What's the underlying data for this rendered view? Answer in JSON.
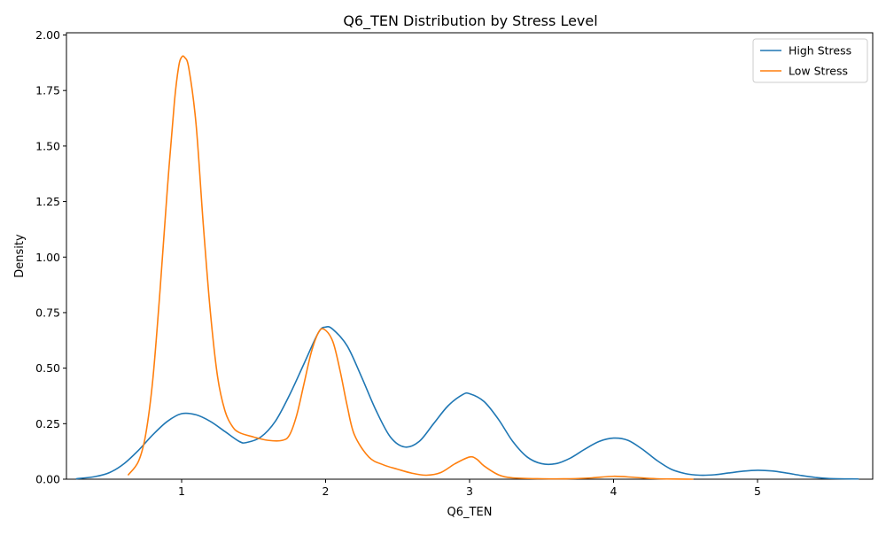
{
  "chart_data": {
    "type": "line",
    "title": "Q6_TEN Distribution by Stress Level",
    "xlabel": "Q6_TEN",
    "ylabel": "Density",
    "xlim": [
      0.2,
      5.8
    ],
    "ylim": [
      0,
      2.01
    ],
    "x_ticks": [
      1,
      2,
      3,
      4,
      5
    ],
    "x_tick_labels": [
      "1",
      "2",
      "3",
      "4",
      "5"
    ],
    "y_ticks": [
      0,
      0.25,
      0.5,
      0.75,
      1.0,
      1.25,
      1.5,
      1.75,
      2.0
    ],
    "y_tick_labels": [
      "0.00",
      "0.25",
      "0.50",
      "0.75",
      "1.00",
      "1.25",
      "1.50",
      "1.75",
      "2.00"
    ],
    "grid": false,
    "legend": "top-right",
    "series": [
      {
        "name": "High Stress",
        "color": "#1f77b4",
        "points": [
          [
            0.27,
            0.002
          ],
          [
            0.4,
            0.012
          ],
          [
            0.5,
            0.03
          ],
          [
            0.6,
            0.07
          ],
          [
            0.7,
            0.13
          ],
          [
            0.8,
            0.2
          ],
          [
            0.9,
            0.26
          ],
          [
            1.0,
            0.295
          ],
          [
            1.1,
            0.29
          ],
          [
            1.2,
            0.26
          ],
          [
            1.3,
            0.215
          ],
          [
            1.4,
            0.17
          ],
          [
            1.45,
            0.165
          ],
          [
            1.55,
            0.19
          ],
          [
            1.65,
            0.26
          ],
          [
            1.75,
            0.38
          ],
          [
            1.85,
            0.52
          ],
          [
            1.95,
            0.66
          ],
          [
            2.0,
            0.685
          ],
          [
            2.05,
            0.675
          ],
          [
            2.15,
            0.6
          ],
          [
            2.25,
            0.46
          ],
          [
            2.35,
            0.31
          ],
          [
            2.45,
            0.19
          ],
          [
            2.55,
            0.145
          ],
          [
            2.65,
            0.17
          ],
          [
            2.75,
            0.25
          ],
          [
            2.85,
            0.33
          ],
          [
            2.95,
            0.38
          ],
          [
            3.0,
            0.385
          ],
          [
            3.1,
            0.35
          ],
          [
            3.2,
            0.27
          ],
          [
            3.3,
            0.17
          ],
          [
            3.4,
            0.1
          ],
          [
            3.5,
            0.07
          ],
          [
            3.6,
            0.07
          ],
          [
            3.7,
            0.095
          ],
          [
            3.8,
            0.135
          ],
          [
            3.9,
            0.17
          ],
          [
            4.0,
            0.185
          ],
          [
            4.1,
            0.175
          ],
          [
            4.2,
            0.135
          ],
          [
            4.3,
            0.085
          ],
          [
            4.4,
            0.045
          ],
          [
            4.5,
            0.025
          ],
          [
            4.6,
            0.018
          ],
          [
            4.7,
            0.02
          ],
          [
            4.8,
            0.028
          ],
          [
            4.9,
            0.036
          ],
          [
            5.0,
            0.04
          ],
          [
            5.1,
            0.037
          ],
          [
            5.2,
            0.028
          ],
          [
            5.3,
            0.017
          ],
          [
            5.4,
            0.008
          ],
          [
            5.5,
            0.003
          ],
          [
            5.7,
            0.001
          ]
        ]
      },
      {
        "name": "Low Stress",
        "color": "#ff7f0e",
        "points": [
          [
            0.63,
            0.02
          ],
          [
            0.7,
            0.08
          ],
          [
            0.75,
            0.2
          ],
          [
            0.8,
            0.45
          ],
          [
            0.85,
            0.85
          ],
          [
            0.9,
            1.3
          ],
          [
            0.95,
            1.7
          ],
          [
            0.98,
            1.86
          ],
          [
            1.0,
            1.9
          ],
          [
            1.02,
            1.9
          ],
          [
            1.05,
            1.85
          ],
          [
            1.1,
            1.6
          ],
          [
            1.15,
            1.15
          ],
          [
            1.2,
            0.75
          ],
          [
            1.25,
            0.46
          ],
          [
            1.3,
            0.31
          ],
          [
            1.35,
            0.24
          ],
          [
            1.4,
            0.21
          ],
          [
            1.5,
            0.19
          ],
          [
            1.6,
            0.175
          ],
          [
            1.7,
            0.175
          ],
          [
            1.75,
            0.2
          ],
          [
            1.8,
            0.29
          ],
          [
            1.85,
            0.43
          ],
          [
            1.9,
            0.57
          ],
          [
            1.95,
            0.66
          ],
          [
            1.99,
            0.675
          ],
          [
            2.05,
            0.62
          ],
          [
            2.1,
            0.49
          ],
          [
            2.15,
            0.33
          ],
          [
            2.2,
            0.2
          ],
          [
            2.3,
            0.1
          ],
          [
            2.4,
            0.065
          ],
          [
            2.5,
            0.045
          ],
          [
            2.6,
            0.027
          ],
          [
            2.7,
            0.018
          ],
          [
            2.8,
            0.03
          ],
          [
            2.9,
            0.07
          ],
          [
            3.0,
            0.1
          ],
          [
            3.05,
            0.09
          ],
          [
            3.1,
            0.06
          ],
          [
            3.2,
            0.02
          ],
          [
            3.3,
            0.006
          ],
          [
            3.5,
            0.002
          ],
          [
            3.7,
            0.002
          ],
          [
            3.85,
            0.006
          ],
          [
            4.0,
            0.013
          ],
          [
            4.15,
            0.008
          ],
          [
            4.3,
            0.002
          ],
          [
            4.55,
            0.0
          ]
        ]
      }
    ]
  }
}
